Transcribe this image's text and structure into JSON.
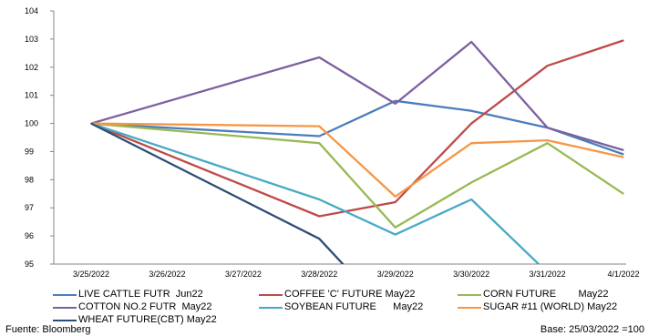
{
  "chart_data": {
    "type": "line",
    "title": "",
    "xlabel": "",
    "ylabel": "",
    "categories": [
      "3/25/2022",
      "3/26/2022",
      "3/27/2022",
      "3/28/2022",
      "3/29/2022",
      "3/30/2022",
      "3/31/2022",
      "4/1/2022"
    ],
    "ylim": [
      95,
      104
    ],
    "yticks": [
      95,
      96,
      97,
      98,
      99,
      100,
      101,
      102,
      103,
      104
    ],
    "grid": false,
    "legend_position": "bottom",
    "series": [
      {
        "name": "LIVE CATTLE FUTR  Jun22",
        "color": "#4a7ebb",
        "values": [
          100,
          null,
          null,
          99.55,
          100.8,
          100.45,
          99.85,
          98.9
        ]
      },
      {
        "name": "COFFEE 'C' FUTURE May22",
        "color": "#be4b48",
        "values": [
          100,
          null,
          null,
          96.7,
          97.2,
          100.0,
          102.05,
          102.95
        ]
      },
      {
        "name": "CORN FUTURE        May22",
        "color": "#98b954",
        "values": [
          100,
          null,
          null,
          99.3,
          96.3,
          97.9,
          99.3,
          97.5
        ]
      },
      {
        "name": "COTTON NO.2 FUTR  May22",
        "color": "#7d60a0",
        "values": [
          100,
          null,
          null,
          102.35,
          100.7,
          102.9,
          99.85,
          99.05
        ]
      },
      {
        "name": "SOYBEAN FUTURE      May22",
        "color": "#46aac5",
        "values": [
          100,
          null,
          null,
          97.3,
          96.05,
          97.3,
          94.7,
          null
        ]
      },
      {
        "name": "SUGAR #11 (WORLD) May22",
        "color": "#f79646",
        "values": [
          100,
          null,
          null,
          99.9,
          97.4,
          99.3,
          99.4,
          98.8
        ]
      },
      {
        "name": "WHEAT FUTURE(CBT) May22",
        "color": "#2c4d75",
        "values": [
          100,
          null,
          null,
          95.9,
          93.0,
          null,
          null,
          null
        ]
      }
    ]
  },
  "footer": {
    "source": "Fuente: Bloomberg",
    "base": "Base:  25/03/2022 =100"
  }
}
